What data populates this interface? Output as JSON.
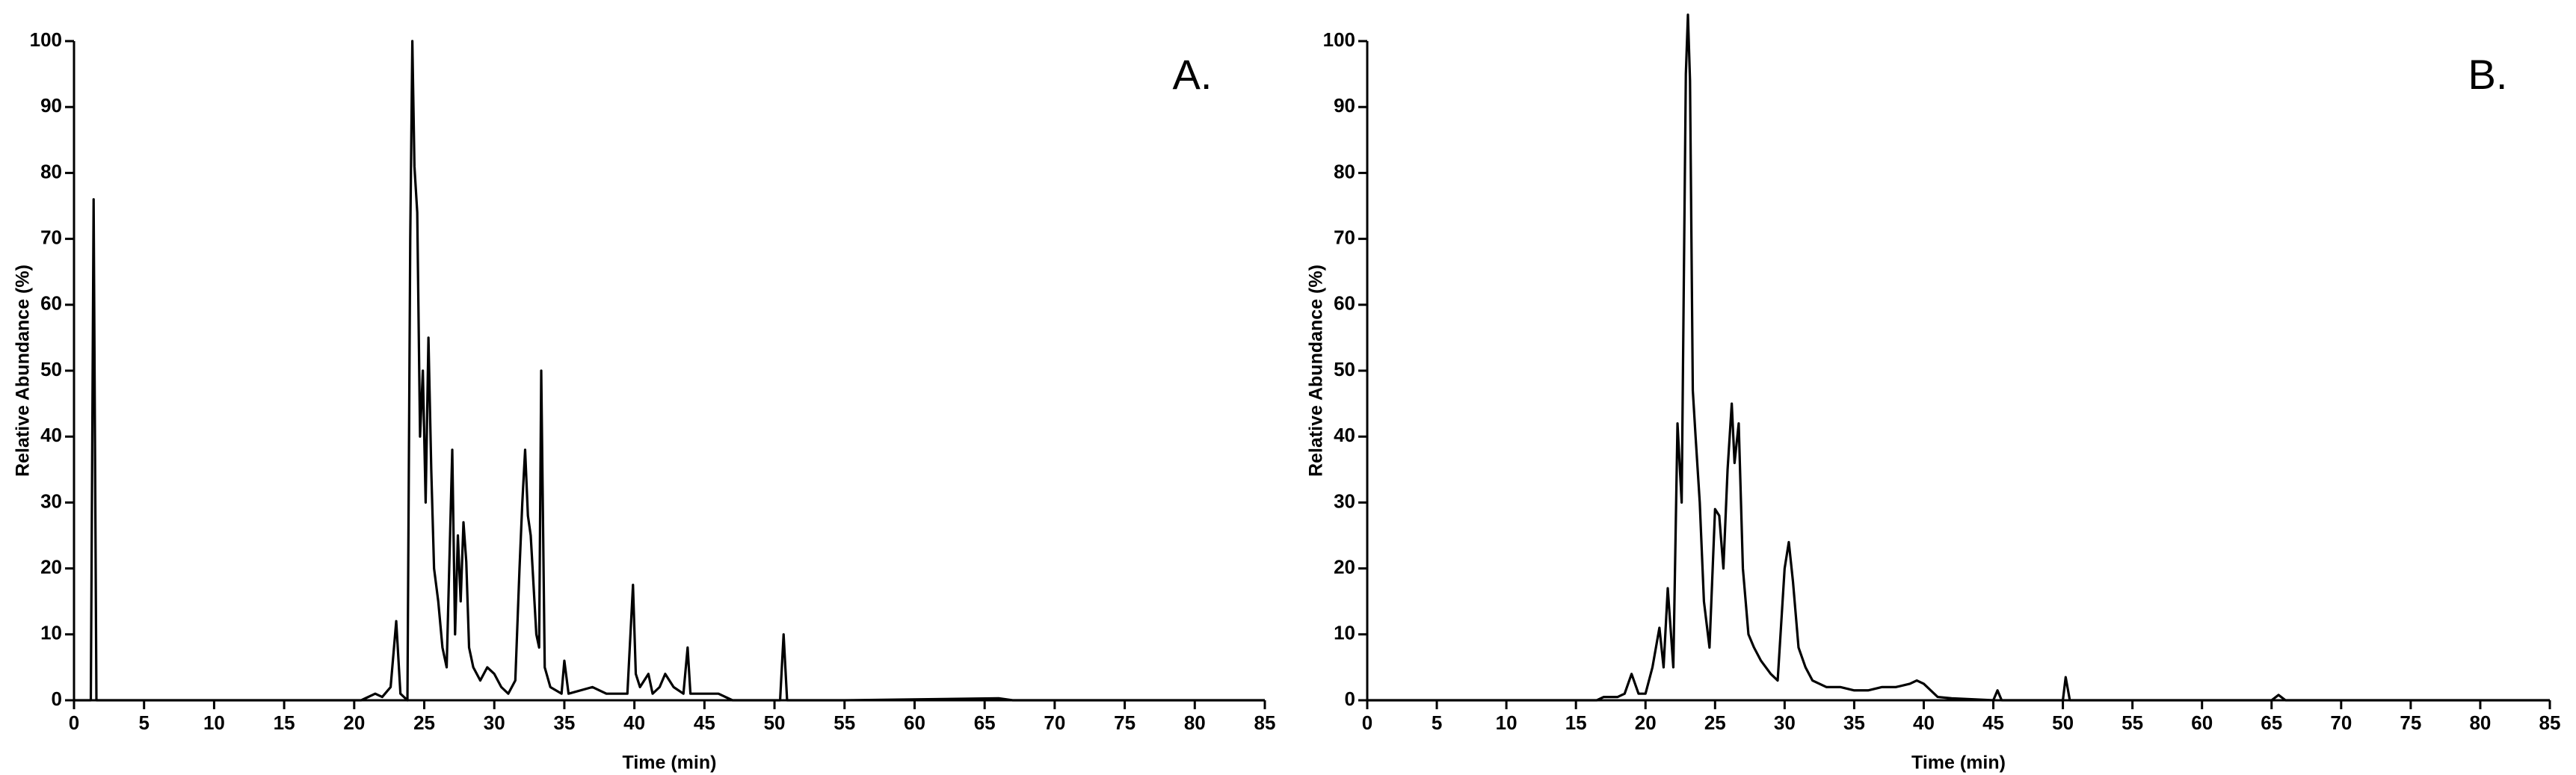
{
  "chart_data": [
    {
      "type": "line",
      "annotation": "A.",
      "xlabel": "Time (min)",
      "ylabel": "Relative Abundance (%)",
      "color": "#000000",
      "xlim": [
        0,
        85
      ],
      "xticks": [
        0,
        5,
        10,
        15,
        20,
        25,
        30,
        35,
        40,
        45,
        50,
        55,
        60,
        65,
        70,
        75,
        80,
        85
      ],
      "ylim": [
        0,
        100
      ],
      "yticks": [
        0,
        10,
        20,
        30,
        40,
        50,
        60,
        70,
        80,
        90,
        100
      ],
      "x": [
        0,
        1.2,
        1.4,
        1.6,
        20.5,
        21.5,
        22,
        22.6,
        23,
        23.3,
        23.8,
        24,
        24.15,
        24.3,
        24.5,
        24.7,
        24.9,
        25.1,
        25.3,
        25.5,
        25.7,
        26,
        26.3,
        26.6,
        27,
        27.2,
        27.4,
        27.6,
        27.8,
        28,
        28.2,
        28.5,
        29,
        29.5,
        30,
        30.5,
        31,
        31.5,
        31.8,
        32,
        32.2,
        32.4,
        32.6,
        33,
        33.2,
        33.35,
        33.6,
        34,
        34.8,
        35,
        35.3,
        37,
        38,
        39.5,
        39.9,
        40.1,
        40.4,
        41,
        41.3,
        41.8,
        42.2,
        42.8,
        43.5,
        43.8,
        44,
        45,
        46,
        47,
        50.4,
        50.65,
        50.9,
        55,
        66,
        67,
        85
      ],
      "values": [
        0,
        0,
        76,
        0,
        0,
        1,
        0.5,
        2,
        12,
        1,
        0,
        70,
        100,
        81,
        74,
        40,
        50,
        30,
        55,
        35,
        20,
        15,
        8,
        5,
        38,
        10,
        25,
        15,
        27,
        21,
        8,
        5,
        3,
        5,
        4,
        2,
        1,
        3,
        20,
        30,
        38,
        28,
        25,
        10,
        8,
        50,
        5,
        2,
        1,
        6,
        1,
        2,
        1,
        1,
        17.5,
        4,
        2,
        4,
        1,
        2,
        4,
        2,
        1,
        8,
        1,
        1,
        1,
        0,
        0,
        10,
        0,
        0,
        0.3,
        0,
        0
      ]
    },
    {
      "type": "line",
      "annotation": "B.",
      "xlabel": "Time (min)",
      "ylabel": "Relative Abundance (%)",
      "color": "#000000",
      "xlim": [
        0,
        85
      ],
      "xticks": [
        0,
        5,
        10,
        15,
        20,
        25,
        30,
        35,
        40,
        45,
        50,
        55,
        60,
        65,
        70,
        75,
        80,
        85
      ],
      "ylim": [
        0,
        100
      ],
      "yticks": [
        0,
        10,
        20,
        30,
        40,
        50,
        60,
        70,
        80,
        90,
        100
      ],
      "x": [
        0,
        16.5,
        17,
        18,
        18.5,
        19,
        19.5,
        20,
        20.5,
        21,
        21.3,
        21.6,
        22,
        22.3,
        22.6,
        22.9,
        23.05,
        23.2,
        23.4,
        23.6,
        23.9,
        24.2,
        24.6,
        25,
        25.3,
        25.6,
        25.9,
        26.2,
        26.4,
        26.7,
        27,
        27.4,
        27.8,
        28.3,
        29,
        29.5,
        30,
        30.3,
        30.6,
        31,
        31.5,
        32,
        33,
        34,
        35,
        36,
        37,
        38,
        39,
        39.5,
        40,
        40.5,
        41,
        42,
        45,
        45.3,
        45.6,
        50,
        50.2,
        50.5,
        65,
        65.5,
        66,
        85
      ],
      "values": [
        0,
        0,
        0.5,
        0.5,
        1,
        4,
        1,
        1,
        5,
        11,
        5,
        17,
        5,
        42,
        30,
        95,
        104,
        94,
        47,
        40,
        30,
        15,
        8,
        29,
        28,
        20,
        35,
        45,
        36,
        42,
        20,
        10,
        8,
        6,
        4,
        3,
        20,
        24,
        18,
        8,
        5,
        3,
        2,
        2,
        1.5,
        1.5,
        2,
        2,
        2.5,
        3,
        2.5,
        1.5,
        0.5,
        0.3,
        0,
        1.5,
        0,
        0,
        3.5,
        0,
        0,
        0.8,
        0,
        0
      ]
    }
  ]
}
